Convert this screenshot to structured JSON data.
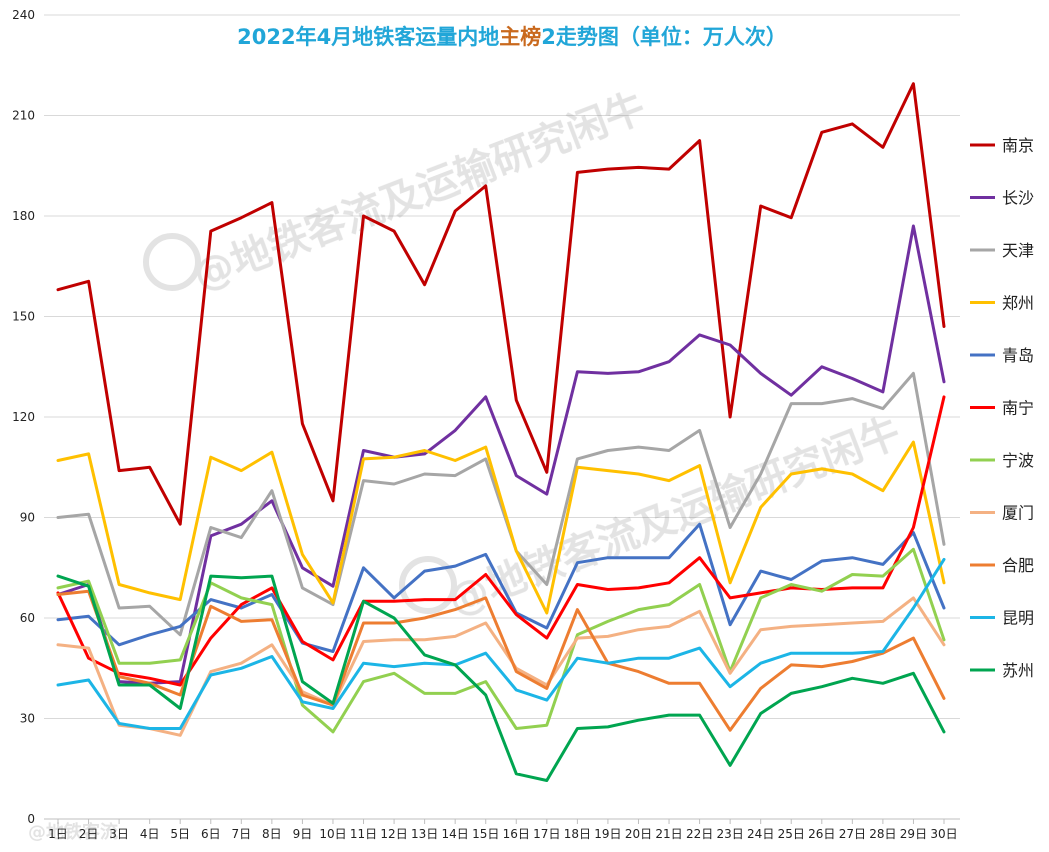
{
  "title": {
    "part1": "2022年4月地铁客运量内地",
    "part2": "主榜",
    "part3": "2",
    "part4": "走势图（单位：万人次）"
  },
  "colors": {
    "title_main": "#21a6d8",
    "title_accent": "#c9691d",
    "grid": "#d9d9d9",
    "axis_text": "#222222"
  },
  "watermark": {
    "line1": "@地铁客流及运输研究闲牛",
    "line2": "@地铁客流及运输研究闲牛",
    "corner": "@地铁客流"
  },
  "chart_data": {
    "type": "line",
    "title": "2022年4月地铁客运量内地主榜2走势图（单位：万人次）",
    "ylim": [
      0,
      240
    ],
    "yticks": [
      0,
      30,
      60,
      90,
      120,
      150,
      180,
      210,
      240
    ],
    "grid": true,
    "legend": "right",
    "categories": [
      "1日",
      "2日",
      "3日",
      "4日",
      "5日",
      "6日",
      "7日",
      "8日",
      "9日",
      "10日",
      "11日",
      "12日",
      "13日",
      "14日",
      "15日",
      "16日",
      "17日",
      "18日",
      "19日",
      "20日",
      "21日",
      "22日",
      "23日",
      "24日",
      "25日",
      "26日",
      "27日",
      "28日",
      "29日",
      "30日"
    ],
    "series": [
      {
        "name": "南京",
        "color": "#c00000",
        "values": [
          158,
          160.5,
          104,
          105,
          88,
          175.5,
          179.5,
          184,
          118,
          95,
          180,
          175.5,
          159.5,
          181.5,
          189,
          125,
          103.5,
          193,
          194,
          194.5,
          194,
          202.5,
          120,
          183,
          179.5,
          205,
          207.5,
          200.5,
          219.5,
          147
        ]
      },
      {
        "name": "长沙",
        "color": "#7030a0",
        "values": [
          67,
          70,
          41,
          40.5,
          41,
          84.5,
          88,
          95,
          75,
          69.5,
          110,
          108,
          109,
          116,
          126,
          102.5,
          97,
          133.5,
          133,
          133.5,
          136.5,
          144.5,
          141.5,
          133,
          126.5,
          135,
          131.5,
          127.5,
          177,
          130.5
        ]
      },
      {
        "name": "天津",
        "color": "#a6a6a6",
        "values": [
          90,
          91,
          63,
          63.5,
          55,
          87,
          84,
          98,
          69,
          64,
          101,
          100,
          103,
          102.5,
          107.5,
          80,
          70,
          107.5,
          110,
          111,
          110,
          116,
          87,
          103,
          124,
          124,
          125.5,
          122.5,
          133,
          82
        ]
      },
      {
        "name": "郑州",
        "color": "#ffc000",
        "values": [
          107,
          109,
          70,
          67.5,
          65.5,
          108,
          104,
          109.5,
          79,
          64.5,
          107.5,
          108,
          110,
          107,
          111,
          80,
          61.5,
          105,
          104,
          103,
          101,
          105.5,
          70.5,
          93,
          103,
          104.5,
          103,
          98,
          112.5,
          70.5
        ]
      },
      {
        "name": "青岛",
        "color": "#4472c4",
        "values": [
          59.5,
          60.5,
          52,
          55,
          57.5,
          65.5,
          63,
          67,
          52.5,
          50,
          75,
          66,
          74,
          75.5,
          79,
          61.5,
          57,
          76.5,
          78,
          78,
          78,
          88,
          58,
          74,
          71.5,
          77,
          78,
          76,
          85.5,
          63
        ]
      },
      {
        "name": "南宁",
        "color": "#ff0000",
        "values": [
          67.5,
          48,
          43.5,
          42,
          40,
          54,
          64,
          69,
          53,
          47.5,
          65,
          65,
          65.5,
          65.5,
          73,
          61,
          54,
          70,
          68.5,
          69,
          70.5,
          78,
          66,
          67.5,
          69,
          68.5,
          69,
          69,
          87,
          126
        ]
      },
      {
        "name": "宁波",
        "color": "#92d050",
        "values": [
          69,
          71,
          46.5,
          46.5,
          47.5,
          70.5,
          66,
          64,
          34,
          26,
          41,
          43.5,
          37.5,
          37.5,
          41,
          27,
          28,
          55,
          59,
          62.5,
          64,
          70,
          44,
          66,
          70,
          68,
          73,
          72.5,
          80.5,
          53.5
        ]
      },
      {
        "name": "厦门",
        "color": "#f4b183",
        "values": [
          52,
          51,
          28,
          27,
          25,
          44,
          46.5,
          52,
          38,
          34,
          53,
          53.5,
          53.5,
          54.5,
          58.5,
          45,
          40,
          54,
          54.5,
          56.5,
          57.5,
          62,
          43.5,
          56.5,
          57.5,
          58,
          58.5,
          59,
          66,
          52
        ]
      },
      {
        "name": "合肥",
        "color": "#ed7d31",
        "values": [
          67,
          68,
          42.5,
          40.5,
          37,
          63.5,
          59,
          59.5,
          37,
          34,
          58.5,
          58.5,
          60,
          62.5,
          66,
          44,
          39,
          62.5,
          46.5,
          44,
          40.5,
          40.5,
          26.5,
          39,
          46,
          45.5,
          47,
          49.5,
          54,
          36
        ]
      },
      {
        "name": "昆明",
        "color": "#1cb5e6",
        "values": [
          40,
          41.5,
          28.5,
          27,
          27,
          43,
          45,
          48.5,
          35,
          33,
          46.5,
          45.5,
          46.5,
          46,
          49.5,
          38.5,
          35.5,
          48,
          46.5,
          48,
          48,
          51,
          39.5,
          46.5,
          49.5,
          49.5,
          49.5,
          50,
          63,
          77.5
        ]
      },
      {
        "name": "苏州",
        "color": "#00a550",
        "values": [
          72.5,
          69.5,
          40,
          40,
          33,
          72.5,
          72,
          72.5,
          41,
          34.5,
          65,
          60,
          49,
          46,
          37,
          13.5,
          11.5,
          27,
          27.5,
          29.5,
          31,
          31,
          16,
          31.5,
          37.5,
          39.5,
          42,
          40.5,
          43.5,
          26
        ]
      }
    ]
  }
}
